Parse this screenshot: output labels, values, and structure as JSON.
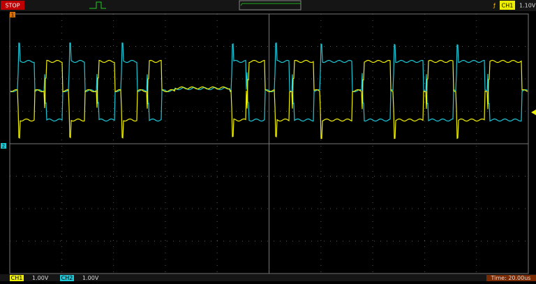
{
  "status": "STOP",
  "trigger": {
    "channel": "CH1",
    "level": "1.10V"
  },
  "markers": {
    "ch1": "1",
    "ch2": "2"
  },
  "footer": {
    "ch1": {
      "label": "CH1",
      "scale": "1.00V"
    },
    "ch2": {
      "label": "CH2",
      "scale": "1.00V"
    },
    "time": "Time: 20.00us"
  }
}
